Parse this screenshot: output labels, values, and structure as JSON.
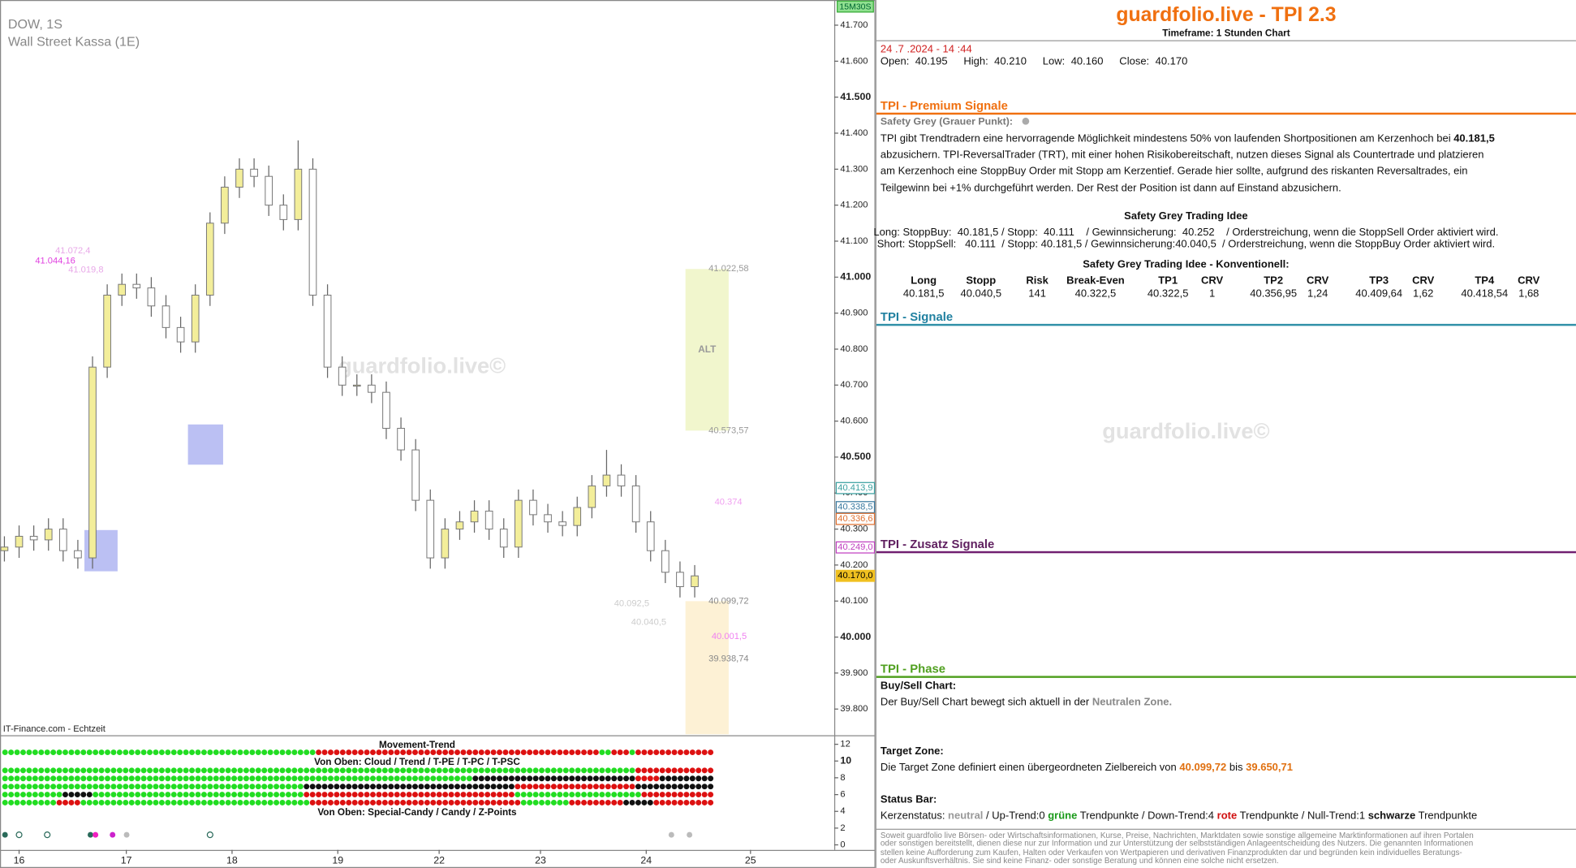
{
  "chart_data": {
    "type": "candlestick",
    "title": "DOW, 1S",
    "subtitle": "Wall Street Kassa (1E)",
    "badge": "15M30S",
    "source": "IT-Finance.com - Echtzeit",
    "up_color": "#f3ee9a",
    "down_color": "#ffffff",
    "ylim": [
      39.73,
      41.77
    ],
    "yticks": [
      {
        "value": 41.7,
        "label": "41.700"
      },
      {
        "value": 41.6,
        "label": "41.600"
      },
      {
        "value": 41.5,
        "label": "41.500"
      },
      {
        "value": 41.4,
        "label": "41.400"
      },
      {
        "value": 41.3,
        "label": "41.300"
      },
      {
        "value": 41.2,
        "label": "41.200"
      },
      {
        "value": 41.1,
        "label": "41.100"
      },
      {
        "value": 41.0,
        "label": "41.000"
      },
      {
        "value": 40.9,
        "label": "40.900"
      },
      {
        "value": 40.8,
        "label": "40.800"
      },
      {
        "value": 40.7,
        "label": "40.700"
      },
      {
        "value": 40.6,
        "label": "40.600"
      },
      {
        "value": 40.5,
        "label": "40.500"
      },
      {
        "value": 40.4,
        "label": "40.400"
      },
      {
        "value": 40.3,
        "label": "40.300"
      },
      {
        "value": 40.2,
        "label": "40.200"
      },
      {
        "value": 40.1,
        "label": "40.100"
      },
      {
        "value": 40.0,
        "label": "40.000"
      },
      {
        "value": 39.9,
        "label": "39.900"
      },
      {
        "value": 39.8,
        "label": "39.800"
      }
    ],
    "xlim": [
      -0.3,
      56.5
    ],
    "xticks": [
      {
        "value": 1.0,
        "label": "16"
      },
      {
        "value": 8.3,
        "label": "17"
      },
      {
        "value": 15.5,
        "label": "18"
      },
      {
        "value": 22.7,
        "label": "19"
      },
      {
        "value": 29.6,
        "label": "22"
      },
      {
        "value": 36.5,
        "label": "23"
      },
      {
        "value": 43.7,
        "label": "24"
      },
      {
        "value": 50.8,
        "label": "25"
      }
    ],
    "open": [
      40.24,
      40.25,
      40.28,
      40.27,
      40.3,
      40.24,
      40.22,
      40.75,
      40.95,
      40.98,
      40.97,
      40.92,
      40.86,
      40.82,
      40.95,
      41.15,
      41.25,
      41.3,
      41.28,
      41.2,
      41.16,
      41.3,
      40.95,
      40.75,
      40.7,
      40.7,
      40.68,
      40.58,
      40.52,
      40.38,
      40.22,
      40.3,
      40.32,
      40.35,
      40.3,
      40.25,
      40.38,
      40.34,
      40.32,
      40.31,
      40.36,
      40.42,
      40.45,
      40.42,
      40.32,
      40.24,
      40.18,
      40.14
    ],
    "high": [
      40.28,
      40.31,
      40.31,
      40.33,
      40.33,
      40.27,
      40.78,
      40.98,
      41.01,
      41.01,
      41.0,
      40.95,
      40.89,
      40.98,
      41.18,
      41.28,
      41.33,
      41.33,
      41.31,
      41.23,
      41.38,
      41.33,
      40.98,
      40.78,
      40.73,
      40.73,
      40.71,
      40.61,
      40.55,
      40.41,
      40.33,
      40.35,
      40.38,
      40.38,
      40.33,
      40.41,
      40.41,
      40.37,
      40.35,
      40.39,
      40.45,
      40.52,
      40.48,
      40.45,
      40.35,
      40.27,
      40.21,
      40.2
    ],
    "low": [
      40.21,
      40.22,
      40.24,
      40.24,
      40.21,
      40.19,
      40.19,
      40.72,
      40.92,
      40.94,
      40.89,
      40.83,
      40.79,
      40.79,
      40.92,
      41.12,
      41.22,
      41.25,
      41.17,
      41.13,
      41.13,
      40.92,
      40.72,
      40.67,
      40.67,
      40.65,
      40.55,
      40.49,
      40.35,
      40.19,
      40.19,
      40.27,
      40.29,
      40.27,
      40.22,
      40.22,
      40.31,
      40.29,
      40.28,
      40.28,
      40.33,
      40.39,
      40.39,
      40.29,
      40.21,
      40.15,
      40.11,
      40.11
    ],
    "close": [
      40.25,
      40.28,
      40.27,
      40.3,
      40.24,
      40.22,
      40.75,
      40.95,
      40.98,
      40.97,
      40.92,
      40.86,
      40.82,
      40.95,
      41.15,
      41.25,
      41.3,
      41.28,
      41.2,
      41.16,
      41.3,
      40.95,
      40.75,
      40.7,
      40.7,
      40.68,
      40.58,
      40.52,
      40.38,
      40.22,
      40.3,
      40.32,
      40.35,
      40.3,
      40.25,
      40.38,
      40.34,
      40.32,
      40.31,
      40.36,
      40.42,
      40.45,
      40.42,
      40.32,
      40.24,
      40.18,
      40.14,
      40.17
    ],
    "annotations": [
      {
        "value": 41.0724,
        "label": "41.072,4",
        "color": "#e8a8e8"
      },
      {
        "value": 41.0442,
        "label": "41.044,16",
        "color": "#e040e0"
      },
      {
        "value": 41.0198,
        "label": "41.019,8",
        "color": "#e8a8e8"
      },
      {
        "value": 41.02258,
        "label": "41.022,58",
        "color": "#999999"
      },
      {
        "value": 40.57357,
        "label": "40.573,57",
        "color": "#999999"
      },
      {
        "value": 40.374,
        "label": "40.374",
        "color": "#f0a0f0"
      },
      {
        "value": 40.09972,
        "label": "40.099,72",
        "color": "#888888"
      },
      {
        "value": 40.0015,
        "label": "40.001,5",
        "color": "#f080f0"
      },
      {
        "value": 39.93874,
        "label": "39.938,74",
        "color": "#888888"
      },
      {
        "value": 40.0925,
        "label": "40.092,5",
        "color": "#cccccc"
      },
      {
        "value": 40.0405,
        "label": "40.040,5",
        "color": "#cccccc"
      }
    ],
    "zone_label": "ALT",
    "price_tags": [
      {
        "value": 40.4139,
        "label": "40.413,9",
        "color": "#3aa0a0"
      },
      {
        "value": 40.3385,
        "label": "40.338,5",
        "color": "#3a7aa0"
      },
      {
        "value": 40.3366,
        "label": "40.336,6",
        "color": "#e07030"
      },
      {
        "value": 40.249,
        "label": "40.249,0",
        "color": "#c040c0"
      },
      {
        "value": 40.17,
        "label": "40.170,0",
        "color": "#f0c020"
      }
    ],
    "indicator": {
      "title": "Movement-Trend",
      "label_1": "Von Oben: Cloud / Trend / T-PE / T-PC / T-PSC",
      "label_2": "Von Oben: Special-Candy / Candy / Z-Points",
      "ylim": [
        0,
        12
      ],
      "yticks": [
        12,
        10,
        8,
        6,
        4,
        2,
        0
      ]
    }
  },
  "watermark": "guardfolio.live©",
  "panel": {
    "title": "guardfolio.live - TPI 2.3",
    "timeframe": "Timeframe: 1 Stunden Chart",
    "datetime": "24 .7 .2024 - 14 :44",
    "ohlc": [
      [
        "Open:",
        "40.195"
      ],
      [
        "High:",
        "40.210"
      ],
      [
        "Low:",
        "40.160"
      ],
      [
        "Close:",
        "40.170"
      ]
    ],
    "premium": {
      "title": "TPI - Premium Signale",
      "label": "Safety Grey (Grauer Punkt):",
      "text_1": "TPI gibt Trendtradern eine hervorragende Möglichkeit mindestens 50% von laufenden Shortpositionen am Kerzenhoch bei",
      "price": "40.181,5",
      "text_2": "abzusichern. TPI-ReversalTrader (TRT), mit einer hohen Risikobereitschaft, nutzen dieses Signal als Countertrade und platzieren am Kerzenhoch eine StoppBuy Order mit Stopp am Kerzentief. Gerade hier sollte, aufgrund des riskanten Reversaltrades, ein Teilgewinn bei +1% durchgeführt werden. Der Rest der Position ist dann auf Einstand abzusichern.",
      "idea_title": "Safety Grey Trading Idee",
      "idea_long": "Long: StoppBuy:  40.181,5 / Stopp:  40.111    / Gewinnsicherung:  40.252    / Orderstreichung, wenn die StoppSell Order aktiviert wird.",
      "idea_short": "Short: StoppSell:   40.111  / Stopp: 40.181,5 / Gewinnsicherung:40.040,5  / Orderstreichung, wenn die StoppBuy Order aktiviert wird.",
      "table_title": "Safety Grey Trading Idee - Konventionell:",
      "table": {
        "header": [
          "Long",
          "Stopp",
          "Risk",
          "Break-Even",
          "TP1",
          "CRV",
          "TP2",
          "CRV",
          "TP3",
          "CRV",
          "TP4",
          "CRV"
        ],
        "rows": [
          [
            "40.181,5",
            "40.040,5",
            "141",
            "40.322,5",
            "40.322,5",
            "1",
            "40.356,95",
            "1,24",
            "40.409,64",
            "1,62",
            "40.418,54",
            "1,68"
          ]
        ]
      }
    },
    "signals": {
      "title": "TPI - Signale"
    },
    "zusatz": {
      "title": "TPI - Zusatz Signale"
    },
    "phase": {
      "title": "TPI - Phase",
      "buysell_label": "Buy/Sell Chart:",
      "buysell_text": "Der Buy/Sell Chart bewegt sich aktuell in der",
      "buysell_zone": "Neutralen Zone.",
      "target_label": "Target Zone:",
      "target_text": "Die Target Zone definiert einen übergeordneten Zielbereich von",
      "target_from": "40.099,72",
      "target_bis": "bis",
      "target_to": "39.650,71",
      "status_label": "Status Bar:",
      "status": [
        "Kerzenstatus:",
        "neutral",
        "/ Up-Trend:0",
        "grüne",
        "Trendpunkte",
        "/ Down-Trend:4",
        "rote",
        "Trendpunkte",
        "/ Null-Trend:1",
        "schwarze",
        "Trendpunkte"
      ]
    },
    "disclaimer": "Soweit guardfolio live Börsen- oder Wirtschaftsinformationen, Kurse, Preise, Nachrichten, Marktdaten sowie sonstige allgemeine Marktinformationen auf ihren Portalen oder sonstigen bereitstellt, dienen diese nur zur Information und zur Unterstützung der selbstständigen Anlageentscheidung des Nutzers. Die genannten Informationen stellen keine Aufforderung zum Kaufen, Halten oder Verkaufen von Wertpapieren und derivativen Finanzprodukten dar und begründen kein individuelles Beratungs- oder Auskunftsverhältnis. Sie sind keine Finanz- oder sonstige Beratung und können eine solche nicht ersetzen."
  }
}
